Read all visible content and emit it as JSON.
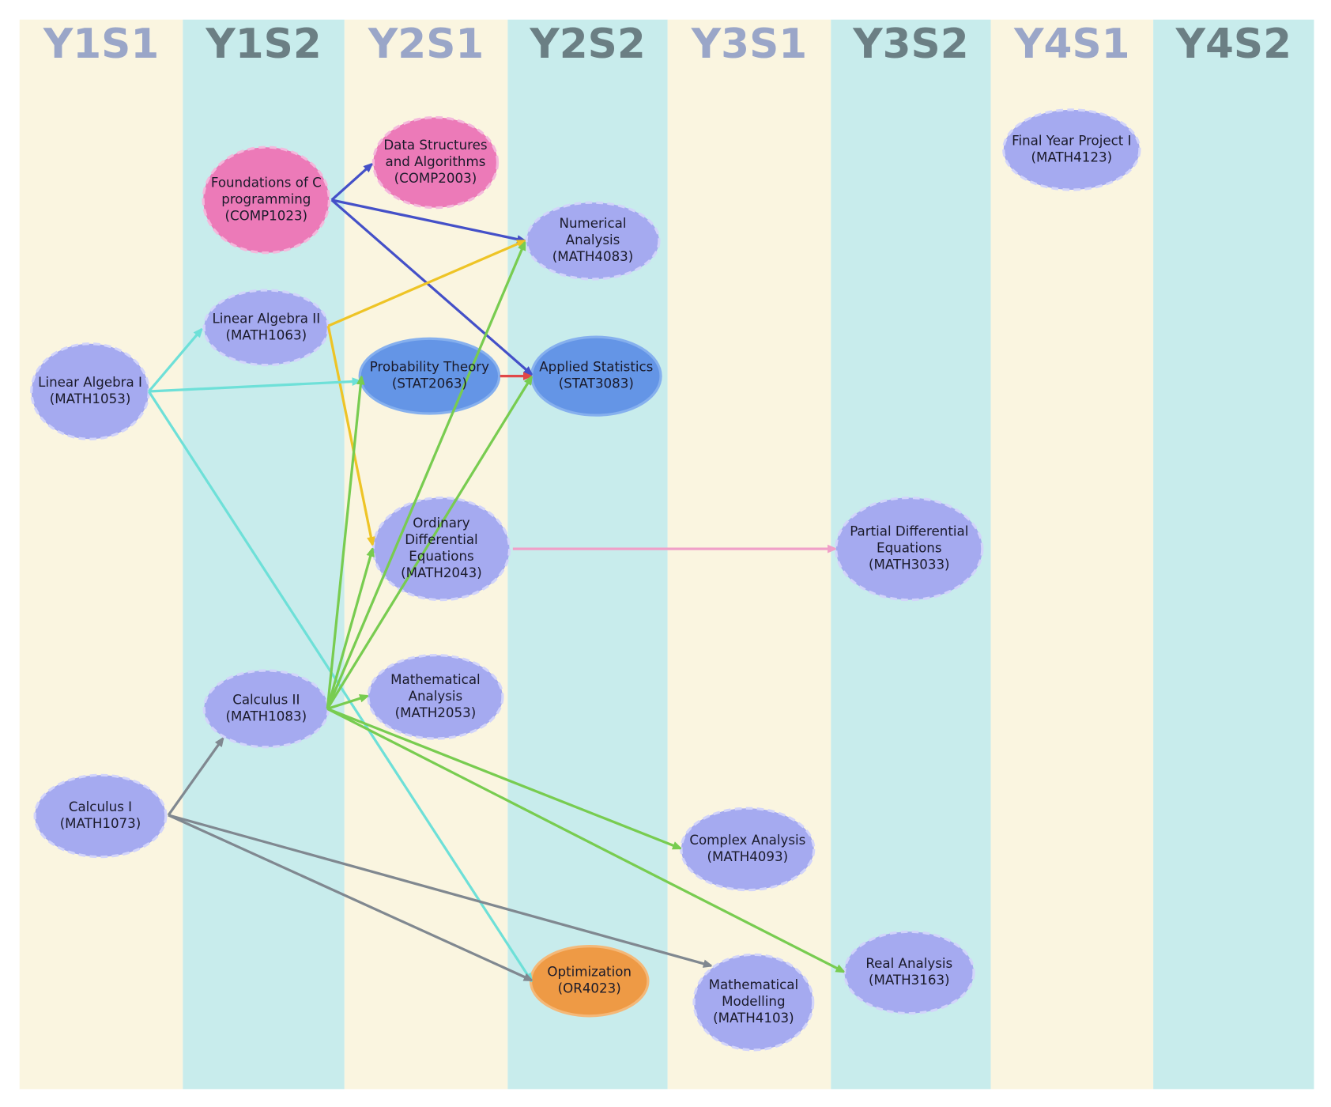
{
  "semesters": [
    "Y1S1",
    "Y1S2",
    "Y2S1",
    "Y2S2",
    "Y3S1",
    "Y3S2",
    "Y4S1",
    "Y4S2"
  ],
  "nodes": [
    {
      "name": [
        "Foundations of C",
        "programming"
      ],
      "code": "(COMP1023)"
    },
    {
      "name": [
        "Data Structures",
        "and Algorithms"
      ],
      "code": "(COMP2003)"
    },
    {
      "name": [
        "Numerical",
        "Analysis"
      ],
      "code": "(MATH4083)"
    },
    {
      "name": [
        "Linear Algebra II"
      ],
      "code": "(MATH1063)"
    },
    {
      "name": [
        "Linear Algebra I"
      ],
      "code": "(MATH1053)"
    },
    {
      "name": [
        "Probability Theory"
      ],
      "code": "(STAT2063)"
    },
    {
      "name": [
        "Applied Statistics"
      ],
      "code": "(STAT3083)"
    },
    {
      "name": [
        "Ordinary",
        "Differential",
        "Equations"
      ],
      "code": "(MATH2043)"
    },
    {
      "name": [
        "Partial Differential",
        "Equations"
      ],
      "code": "(MATH3033)"
    },
    {
      "name": [
        "Mathematical",
        "Analysis"
      ],
      "code": "(MATH2053)"
    },
    {
      "name": [
        "Calculus II"
      ],
      "code": "(MATH1083)"
    },
    {
      "name": [
        "Calculus I"
      ],
      "code": "(MATH1073)"
    },
    {
      "name": [
        "Complex Analysis"
      ],
      "code": "(MATH4093)"
    },
    {
      "name": [
        "Optimization"
      ],
      "code": "(OR4023)"
    },
    {
      "name": [
        "Mathematical",
        "Modelling"
      ],
      "code": "(MATH4103)"
    },
    {
      "name": [
        "Real Analysis"
      ],
      "code": "(MATH3163)"
    },
    {
      "name": [
        "Final Year Project I"
      ],
      "code": "(MATH4123)"
    }
  ]
}
